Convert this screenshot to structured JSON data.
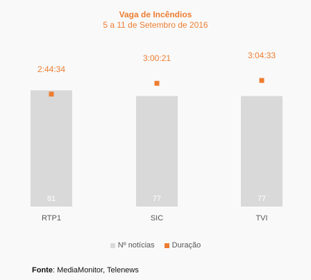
{
  "chart_data": {
    "type": "bar",
    "title": "Vaga de Incêndios",
    "subtitle": "5 a 11 de Setembro de 2016",
    "categories": [
      "RTP1",
      "SIC",
      "TVI"
    ],
    "series": [
      {
        "name": "Nº notícias",
        "type": "bar",
        "values": [
          81,
          77,
          77
        ],
        "color": "#d9d9d9"
      },
      {
        "name": "Duração",
        "type": "marker",
        "values": [
          "2:44:34",
          "3:00:21",
          "3:04:33"
        ],
        "color": "#ed7d31"
      }
    ],
    "ylim": [
      0,
      100
    ],
    "y2lim": [
      0,
      12600
    ],
    "grid": false,
    "legend_position": "bottom"
  },
  "source": {
    "label": "Fonte",
    "text": ": MediaMonitor, Telenews"
  }
}
